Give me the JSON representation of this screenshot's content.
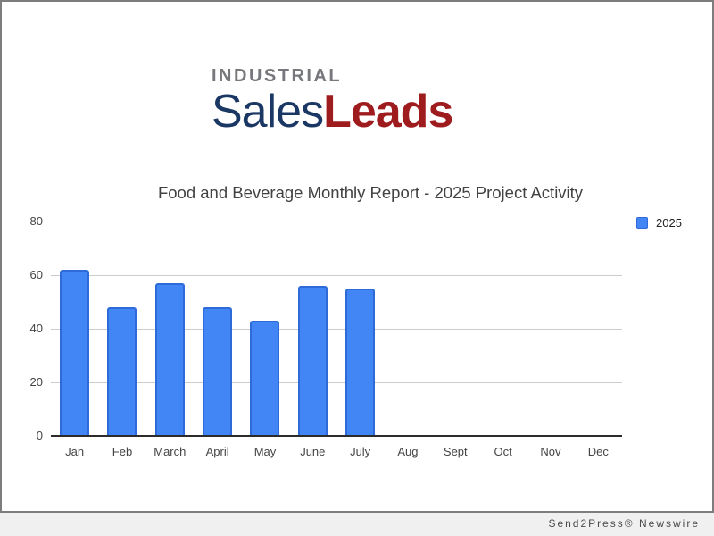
{
  "logo": {
    "line1": "INDUSTRIAL",
    "line2_part1": "Sales",
    "line2_part2": "Leads",
    "colors": {
      "line1_gray": "#77787B",
      "sales_navy": "#1B3764",
      "leads_red": "#9E1B1E"
    }
  },
  "footer": {
    "credit": "Send2Press® Newswire"
  },
  "chart_data": {
    "type": "bar",
    "title": "Food and Beverage Monthly Report - 2025 Project Activity",
    "categories": [
      "Jan",
      "Feb",
      "March",
      "April",
      "May",
      "June",
      "July",
      "Aug",
      "Sept",
      "Oct",
      "Nov",
      "Dec"
    ],
    "series": [
      {
        "name": "2025",
        "values": [
          62,
          48,
          57,
          48,
          43,
          56,
          55,
          null,
          null,
          null,
          null,
          null
        ]
      }
    ],
    "xlabel": "",
    "ylabel": "",
    "ylim": [
      0,
      80
    ],
    "yticks": [
      0,
      20,
      40,
      60,
      80
    ],
    "grid": true,
    "legend": {
      "position": "top-right",
      "entries": [
        "2025"
      ]
    },
    "colors": {
      "bar_fill": "#4285F4",
      "bar_border": "#2E6BD9",
      "gridline": "#CCCCCC",
      "axis_line": "#2B2B2B",
      "tick_text": "#444444",
      "title_text": "#424242"
    }
  }
}
